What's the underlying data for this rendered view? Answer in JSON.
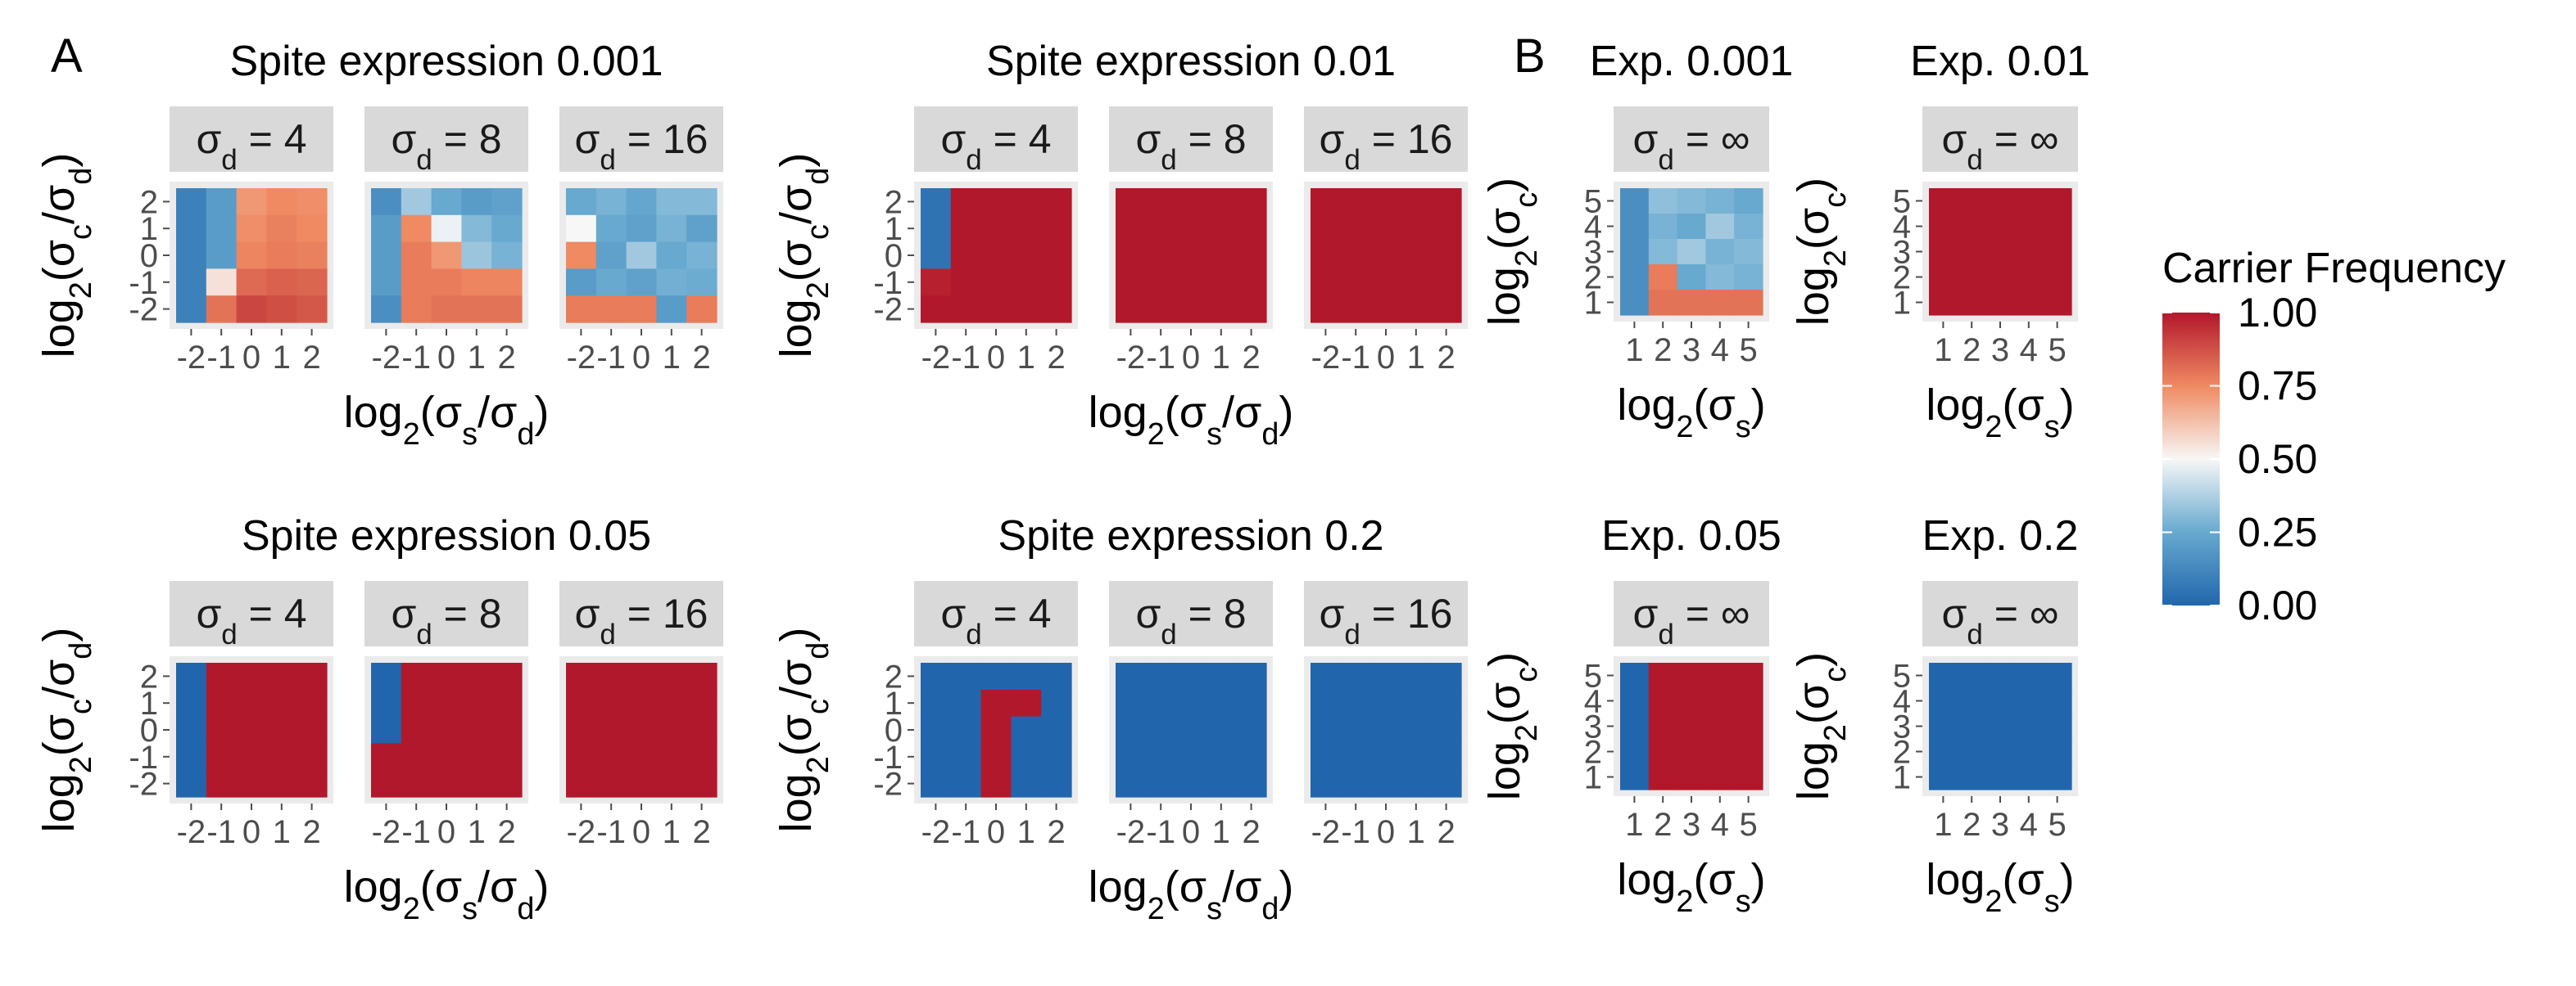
{
  "panel_letters": [
    "A",
    "B"
  ],
  "legend": {
    "title": "Carrier Frequency",
    "breaks": [
      "1.00",
      "0.75",
      "0.50",
      "0.25",
      "0.00"
    ],
    "colors": [
      "#b2182b",
      "#ef8a62",
      "#f7f7f7",
      "#67a9cf",
      "#2166ac"
    ]
  },
  "colors": {
    "strip_bg": "#d9d9d9",
    "panel_bg": "#ebebeb",
    "grid": "#ffffff"
  },
  "chart_data": [
    {
      "type": "heatmap",
      "title": "Spite expression 0.001",
      "xlabel": "log2(σs/σd)",
      "ylabel": "log2(σc/σd)",
      "x_ticks": [
        "-2",
        "-1",
        "0",
        "1",
        "2"
      ],
      "y_ticks": [
        "-2",
        "-1",
        "0",
        "1",
        "2"
      ],
      "x_range": [
        -2.5,
        2.5
      ],
      "y_range": [
        -2.5,
        2.5
      ],
      "facets": [
        {
          "label": "σd = 4",
          "values": [
            [
              0.1,
              0.2,
              0.72,
              0.75,
              0.74
            ],
            [
              0.1,
              0.2,
              0.74,
              0.77,
              0.75
            ],
            [
              0.1,
              0.2,
              0.76,
              0.78,
              0.77
            ],
            [
              0.1,
              0.55,
              0.82,
              0.84,
              0.83
            ],
            [
              0.1,
              0.8,
              0.9,
              0.88,
              0.86
            ]
          ]
        },
        {
          "label": "σd = 8",
          "values": [
            [
              0.15,
              0.35,
              0.25,
              0.2,
              0.22
            ],
            [
              0.2,
              0.75,
              0.48,
              0.3,
              0.25
            ],
            [
              0.2,
              0.78,
              0.72,
              0.34,
              0.28
            ],
            [
              0.2,
              0.78,
              0.78,
              0.76,
              0.76
            ],
            [
              0.15,
              0.78,
              0.8,
              0.8,
              0.8
            ]
          ]
        },
        {
          "label": "σd = 16",
          "values": [
            [
              0.25,
              0.28,
              0.24,
              0.3,
              0.3
            ],
            [
              0.5,
              0.25,
              0.22,
              0.28,
              0.22
            ],
            [
              0.75,
              0.22,
              0.35,
              0.25,
              0.28
            ],
            [
              0.2,
              0.25,
              0.22,
              0.27,
              0.26
            ],
            [
              0.78,
              0.78,
              0.78,
              0.2,
              0.78
            ]
          ]
        }
      ]
    },
    {
      "type": "heatmap",
      "title": "Spite expression 0.01",
      "xlabel": "log2(σs/σd)",
      "ylabel": "log2(σc/σd)",
      "x_ticks": [
        "-2",
        "-1",
        "0",
        "1",
        "2"
      ],
      "y_ticks": [
        "-2",
        "-1",
        "0",
        "1",
        "2"
      ],
      "x_range": [
        -2.5,
        2.5
      ],
      "y_range": [
        -2.5,
        2.5
      ],
      "facets": [
        {
          "label": "σd = 4",
          "values": [
            [
              0.05,
              1,
              1,
              1,
              1
            ],
            [
              0.05,
              1,
              1,
              1,
              1
            ],
            [
              0.05,
              1,
              1,
              1,
              1
            ],
            [
              0.98,
              1,
              1,
              1,
              1
            ],
            [
              1,
              1,
              1,
              1,
              1
            ]
          ]
        },
        {
          "label": "σd = 8",
          "values": [
            [
              1,
              1,
              1,
              1,
              1
            ],
            [
              1,
              1,
              1,
              1,
              1
            ],
            [
              1,
              1,
              1,
              1,
              1
            ],
            [
              1,
              1,
              1,
              1,
              1
            ],
            [
              1,
              1,
              1,
              1,
              1
            ]
          ]
        },
        {
          "label": "σd = 16",
          "values": [
            [
              1,
              1,
              1,
              1,
              1
            ],
            [
              1,
              1,
              1,
              1,
              1
            ],
            [
              1,
              1,
              1,
              1,
              1
            ],
            [
              1,
              1,
              1,
              1,
              1
            ],
            [
              1,
              1,
              1,
              1,
              1
            ]
          ]
        }
      ]
    },
    {
      "type": "heatmap",
      "title": "Spite expression 0.05",
      "xlabel": "log2(σs/σd)",
      "ylabel": "log2(σc/σd)",
      "x_ticks": [
        "-2",
        "-1",
        "0",
        "1",
        "2"
      ],
      "y_ticks": [
        "-2",
        "-1",
        "0",
        "1",
        "2"
      ],
      "x_range": [
        -2.5,
        2.5
      ],
      "y_range": [
        -2.5,
        2.5
      ],
      "facets": [
        {
          "label": "σd = 4",
          "values": [
            [
              0,
              1,
              1,
              1,
              1
            ],
            [
              0,
              1,
              1,
              1,
              1
            ],
            [
              0,
              1,
              1,
              1,
              1
            ],
            [
              0,
              1,
              1,
              1,
              1
            ],
            [
              0,
              1,
              1,
              1,
              1
            ]
          ]
        },
        {
          "label": "σd = 8",
          "values": [
            [
              0,
              1,
              1,
              1,
              1
            ],
            [
              0,
              1,
              1,
              1,
              1
            ],
            [
              0,
              1,
              1,
              1,
              1
            ],
            [
              1,
              1,
              1,
              1,
              1
            ],
            [
              1,
              1,
              1,
              1,
              1
            ]
          ]
        },
        {
          "label": "σd = 16",
          "values": [
            [
              1,
              1,
              1,
              1,
              1
            ],
            [
              1,
              1,
              1,
              1,
              1
            ],
            [
              1,
              1,
              1,
              1,
              1
            ],
            [
              1,
              1,
              1,
              1,
              1
            ],
            [
              1,
              1,
              1,
              1,
              1
            ]
          ]
        }
      ]
    },
    {
      "type": "heatmap",
      "title": "Spite expression 0.2",
      "xlabel": "log2(σs/σd)",
      "ylabel": "log2(σc/σd)",
      "x_ticks": [
        "-2",
        "-1",
        "0",
        "1",
        "2"
      ],
      "y_ticks": [
        "-2",
        "-1",
        "0",
        "1",
        "2"
      ],
      "x_range": [
        -2.5,
        2.5
      ],
      "y_range": [
        -2.5,
        2.5
      ],
      "facets": [
        {
          "label": "σd = 4",
          "values": [
            [
              0,
              0,
              0,
              0,
              0
            ],
            [
              0,
              0,
              1,
              1,
              0
            ],
            [
              0,
              0,
              1,
              0,
              0
            ],
            [
              0,
              0,
              1,
              0,
              0
            ],
            [
              0,
              0,
              1,
              0,
              0
            ]
          ]
        },
        {
          "label": "σd = 8",
          "values": [
            [
              0,
              0,
              0,
              0,
              0
            ],
            [
              0,
              0,
              0,
              0,
              0
            ],
            [
              0,
              0,
              0,
              0,
              0
            ],
            [
              0,
              0,
              0,
              0,
              0
            ],
            [
              0,
              0,
              0,
              0,
              0
            ]
          ]
        },
        {
          "label": "σd = 16",
          "values": [
            [
              0,
              0,
              0,
              0,
              0
            ],
            [
              0,
              0,
              0,
              0,
              0
            ],
            [
              0,
              0,
              0,
              0,
              0
            ],
            [
              0,
              0,
              0,
              0,
              0
            ],
            [
              0,
              0,
              0,
              0,
              0
            ]
          ]
        }
      ]
    },
    {
      "type": "heatmap",
      "title": "Exp. 0.001",
      "xlabel": "log2(σs)",
      "ylabel": "log2(σc)",
      "x_ticks": [
        "1",
        "2",
        "3",
        "4",
        "5"
      ],
      "y_ticks": [
        "1",
        "2",
        "3",
        "4",
        "5"
      ],
      "x_range": [
        0.5,
        5.5
      ],
      "y_range": [
        0.5,
        5.5
      ],
      "facets": [
        {
          "label": "σd = ∞",
          "values": [
            [
              0.15,
              0.32,
              0.3,
              0.28,
              0.25
            ],
            [
              0.15,
              0.28,
              0.25,
              0.35,
              0.28
            ],
            [
              0.15,
              0.3,
              0.35,
              0.28,
              0.3
            ],
            [
              0.15,
              0.78,
              0.25,
              0.3,
              0.28
            ],
            [
              0.15,
              0.8,
              0.8,
              0.8,
              0.8
            ]
          ]
        }
      ]
    },
    {
      "type": "heatmap",
      "title": "Exp. 0.01",
      "xlabel": "log2(σs)",
      "ylabel": "log2(σc)",
      "x_ticks": [
        "1",
        "2",
        "3",
        "4",
        "5"
      ],
      "y_ticks": [
        "1",
        "2",
        "3",
        "4",
        "5"
      ],
      "x_range": [
        0.5,
        5.5
      ],
      "y_range": [
        0.5,
        5.5
      ],
      "facets": [
        {
          "label": "σd = ∞",
          "values": [
            [
              1,
              1,
              1,
              1,
              1
            ],
            [
              1,
              1,
              1,
              1,
              1
            ],
            [
              1,
              1,
              1,
              1,
              1
            ],
            [
              1,
              1,
              1,
              1,
              1
            ],
            [
              1,
              1,
              1,
              1,
              1
            ]
          ]
        }
      ]
    },
    {
      "type": "heatmap",
      "title": "Exp. 0.05",
      "xlabel": "log2(σs)",
      "ylabel": "log2(σc)",
      "x_ticks": [
        "1",
        "2",
        "3",
        "4",
        "5"
      ],
      "y_ticks": [
        "1",
        "2",
        "3",
        "4",
        "5"
      ],
      "x_range": [
        0.5,
        5.5
      ],
      "y_range": [
        0.5,
        5.5
      ],
      "facets": [
        {
          "label": "σd = ∞",
          "values": [
            [
              0,
              1,
              1,
              1,
              1
            ],
            [
              0,
              1,
              1,
              1,
              1
            ],
            [
              0,
              1,
              1,
              1,
              1
            ],
            [
              0,
              1,
              1,
              1,
              1
            ],
            [
              0,
              1,
              1,
              1,
              1
            ]
          ]
        }
      ]
    },
    {
      "type": "heatmap",
      "title": "Exp. 0.2",
      "xlabel": "log2(σs)",
      "ylabel": "log2(σc)",
      "x_ticks": [
        "1",
        "2",
        "3",
        "4",
        "5"
      ],
      "y_ticks": [
        "1",
        "2",
        "3",
        "4",
        "5"
      ],
      "x_range": [
        0.5,
        5.5
      ],
      "y_range": [
        0.5,
        5.5
      ],
      "facets": [
        {
          "label": "σd = ∞",
          "values": [
            [
              0,
              0,
              0,
              0,
              0
            ],
            [
              0,
              0,
              0,
              0,
              0
            ],
            [
              0,
              0,
              0,
              0,
              0
            ],
            [
              0,
              0,
              0,
              0,
              0
            ],
            [
              0,
              0,
              0,
              0,
              0
            ]
          ]
        }
      ]
    }
  ]
}
